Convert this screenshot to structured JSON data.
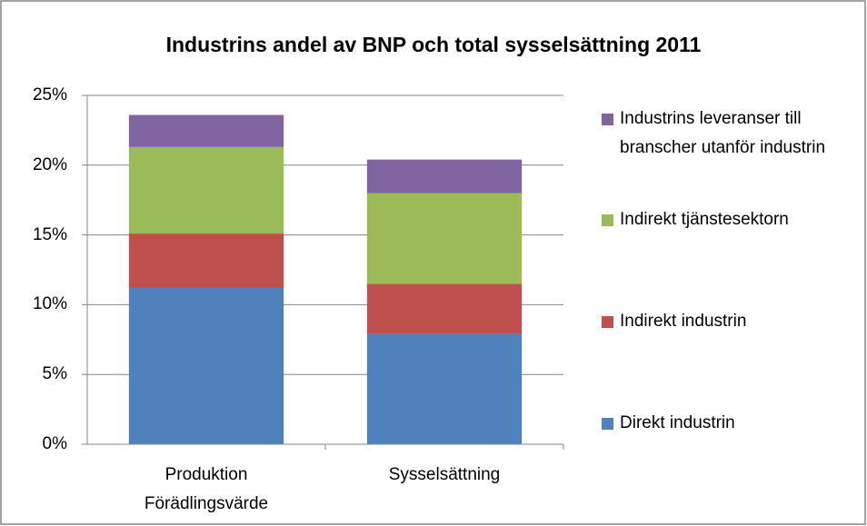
{
  "chart_data": {
    "type": "stacked_bar",
    "title": "Industrins andel av BNP och total sysselsättning 2011",
    "categories": [
      "Produktion Förädlingsvärde",
      "Sysselsättning"
    ],
    "series": [
      {
        "name": "Direkt industrin",
        "color": "#4f81bd",
        "values": [
          11.2,
          7.9
        ]
      },
      {
        "name": "Indirekt industrin",
        "color": "#c0504d",
        "values": [
          3.9,
          3.6
        ]
      },
      {
        "name": "Indirekt tjänstesektorn",
        "color": "#9bbb59",
        "values": [
          6.2,
          6.5
        ]
      },
      {
        "name": "Industrins leveranser till branscher utanför industrin",
        "color": "#8064a2",
        "values": [
          2.3,
          2.4
        ]
      }
    ],
    "ylim": [
      0,
      25
    ],
    "yticks": [
      {
        "value": 0,
        "label": "0%"
      },
      {
        "value": 5,
        "label": "5%"
      },
      {
        "value": 10,
        "label": "10%"
      },
      {
        "value": 15,
        "label": "15%"
      },
      {
        "value": 20,
        "label": "20%"
      },
      {
        "value": 25,
        "label": "25%"
      }
    ],
    "grid": true,
    "legend": "right"
  }
}
